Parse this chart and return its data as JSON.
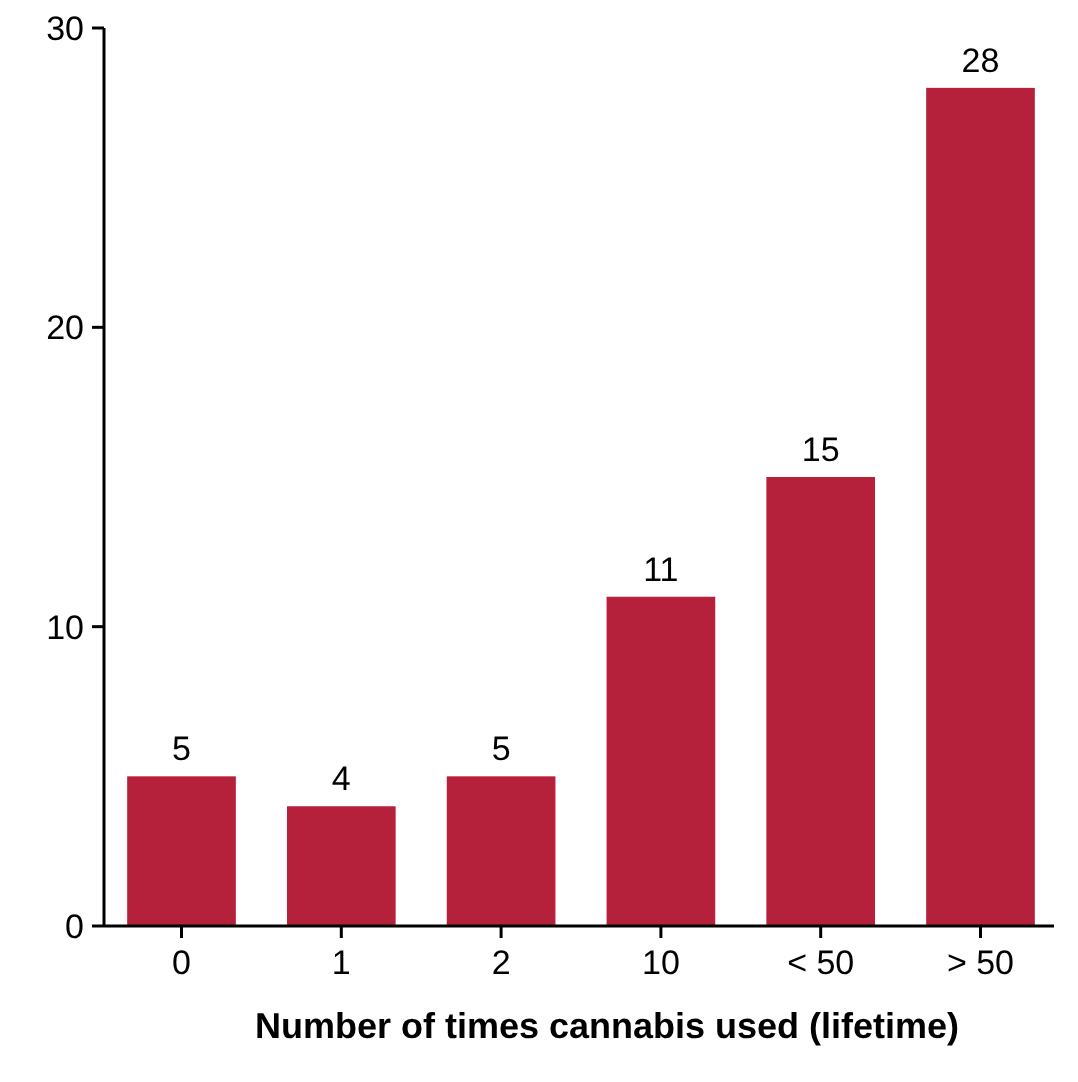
{
  "chart_data": {
    "type": "bar",
    "xlabel": "Number of times cannabis used (lifetime)",
    "categories": [
      "0",
      "1",
      "2",
      "10",
      "< 50",
      "> 50"
    ],
    "values": [
      5,
      4,
      5,
      11,
      15,
      28
    ],
    "data_labels": true,
    "color": "#b5203a",
    "ylim": [
      0,
      30
    ],
    "yticks": [
      0,
      10,
      20,
      30
    ],
    "grid": false
  }
}
